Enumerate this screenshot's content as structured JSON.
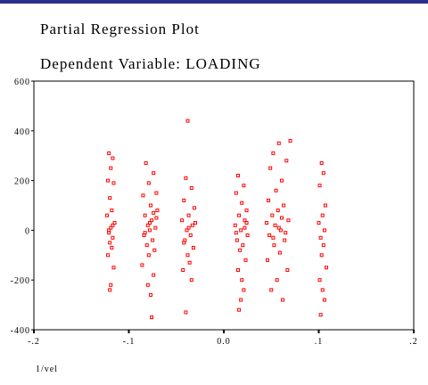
{
  "chart_data": {
    "type": "scatter",
    "title": "Partial Regression Plot",
    "subtitle": "Dependent Variable: LOADING",
    "x_label": "1/vel",
    "xlim": [
      -0.2,
      0.2
    ],
    "ylim": [
      -400,
      600
    ],
    "xticks": [
      {
        "value": -0.2,
        "label": "-.2"
      },
      {
        "value": -0.1,
        "label": "-.1"
      },
      {
        "value": 0,
        "label": "0.0"
      },
      {
        "value": 0.1,
        "label": ".1"
      },
      {
        "value": 0.2,
        "label": ".2"
      }
    ],
    "yticks": [
      600,
      400,
      200,
      0,
      -200,
      -400
    ],
    "series": [
      {
        "color": "#ff0000",
        "x": [
          -0.121,
          -0.117,
          -0.119,
          -0.122,
          -0.116,
          -0.12,
          -0.118,
          -0.123,
          -0.115,
          -0.119,
          -0.121,
          -0.117,
          -0.12,
          -0.118,
          -0.122,
          -0.116,
          -0.119,
          -0.12,
          -0.117,
          -0.121,
          -0.082,
          -0.074,
          -0.079,
          -0.071,
          -0.085,
          -0.077,
          -0.07,
          -0.083,
          -0.076,
          -0.08,
          -0.072,
          -0.078,
          -0.084,
          -0.075,
          -0.081,
          -0.073,
          -0.079,
          -0.086,
          -0.074,
          -0.08,
          -0.077,
          -0.076,
          -0.071,
          -0.083,
          -0.078,
          -0.074,
          -0.038,
          -0.04,
          -0.034,
          -0.042,
          -0.031,
          -0.037,
          -0.044,
          -0.033,
          -0.039,
          -0.035,
          -0.041,
          -0.032,
          -0.038,
          -0.036,
          -0.043,
          -0.034,
          -0.04,
          -0.03,
          -0.037,
          -0.042,
          0.015,
          0.021,
          0.013,
          0.019,
          0.024,
          0.016,
          0.022,
          0.012,
          0.018,
          0.025,
          0.014,
          0.02,
          0.017,
          0.023,
          0.015,
          0.019,
          0.021,
          0.018,
          0.016,
          0.022,
          0.013,
          0.024,
          0.058,
          0.052,
          0.066,
          0.049,
          0.061,
          0.055,
          0.047,
          0.063,
          0.057,
          0.051,
          0.068,
          0.054,
          0.06,
          0.048,
          0.064,
          0.053,
          0.059,
          0.046,
          0.067,
          0.056,
          0.05,
          0.062,
          0.07,
          0.045,
          0.058,
          0.065,
          0.052,
          0.061,
          0.103,
          0.105,
          0.101,
          0.107,
          0.104,
          0.1,
          0.106,
          0.102,
          0.105,
          0.103,
          0.108,
          0.101,
          0.104,
          0.106,
          0.102
        ],
        "values": [
          310,
          290,
          250,
          200,
          190,
          130,
          80,
          60,
          30,
          10,
          -10,
          -30,
          -50,
          -70,
          -100,
          -150,
          -220,
          -240,
          20,
          0,
          270,
          230,
          190,
          150,
          140,
          100,
          80,
          60,
          40,
          20,
          10,
          0,
          -20,
          -40,
          -60,
          -80,
          -100,
          -140,
          -180,
          -220,
          -260,
          -350,
          50,
          -10,
          30,
          70,
          440,
          210,
          170,
          120,
          90,
          60,
          40,
          20,
          0,
          -20,
          -40,
          -70,
          -100,
          -130,
          -160,
          -200,
          -330,
          30,
          10,
          -50,
          220,
          180,
          150,
          110,
          80,
          60,
          40,
          20,
          0,
          -20,
          -40,
          -60,
          -80,
          -120,
          -160,
          -200,
          -240,
          -280,
          -320,
          10,
          -10,
          30,
          350,
          310,
          280,
          250,
          200,
          160,
          120,
          100,
          80,
          60,
          40,
          20,
          0,
          -20,
          -40,
          -60,
          -90,
          -120,
          -160,
          -200,
          -240,
          -280,
          360,
          30,
          10,
          -10,
          -30,
          50,
          270,
          230,
          180,
          100,
          60,
          30,
          0,
          -30,
          -60,
          -100,
          -150,
          -200,
          -240,
          -280,
          -340
        ]
      }
    ]
  }
}
